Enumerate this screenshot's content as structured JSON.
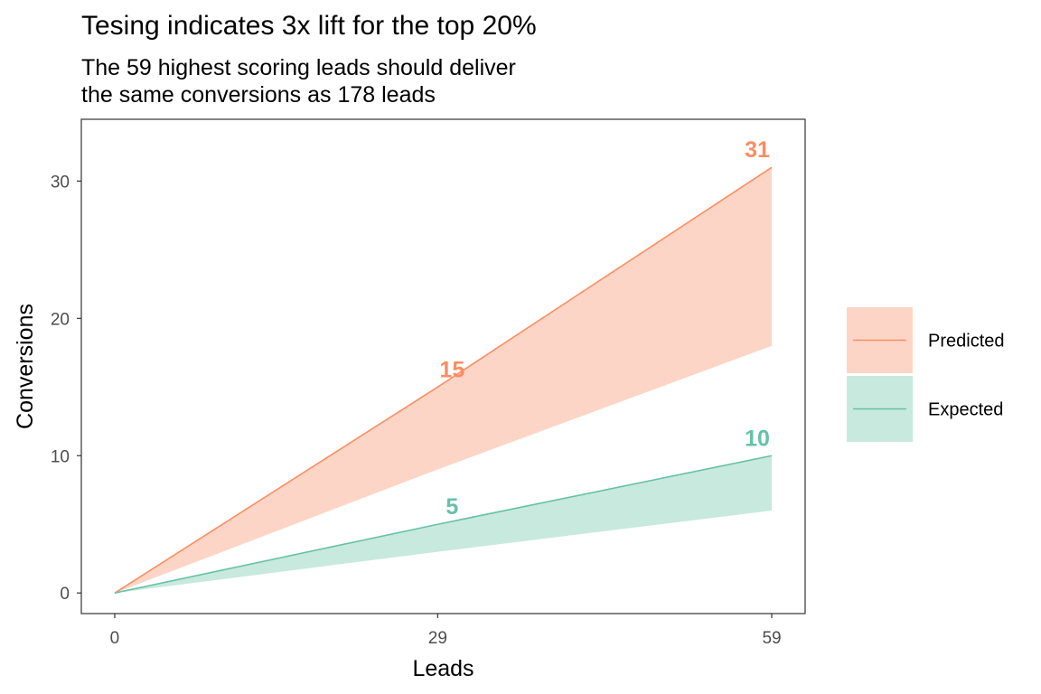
{
  "chart_data": {
    "type": "area",
    "title": "Tesing indicates 3x lift for the top 20%",
    "subtitle": [
      "The 59 highest scoring leads should deliver",
      "the same conversions as 178 leads"
    ],
    "xlabel": "Leads",
    "ylabel": "Conversions",
    "xlim": [
      -3,
      62
    ],
    "ylim": [
      -1.5,
      34.5
    ],
    "x_ticks": [
      0,
      29,
      59
    ],
    "y_ticks": [
      0,
      10,
      20,
      30
    ],
    "grid": false,
    "legend_position": "right",
    "series": [
      {
        "name": "Predicted",
        "color": "#fc8d62",
        "fill": "#fdd5c6",
        "x": [
          0,
          29,
          59
        ],
        "upper": [
          0,
          15,
          31
        ],
        "lower": [
          0,
          9,
          18
        ],
        "labels": [
          {
            "x": 29,
            "y": 15,
            "text": "15"
          },
          {
            "x": 59,
            "y": 31,
            "text": "31"
          }
        ]
      },
      {
        "name": "Expected",
        "color": "#66c2a5",
        "fill": "#c8e9de",
        "x": [
          0,
          29,
          59
        ],
        "upper": [
          0,
          5,
          10
        ],
        "lower": [
          0,
          3,
          6
        ],
        "labels": [
          {
            "x": 29,
            "y": 5,
            "text": "5"
          },
          {
            "x": 59,
            "y": 10,
            "text": "10"
          }
        ]
      }
    ]
  }
}
